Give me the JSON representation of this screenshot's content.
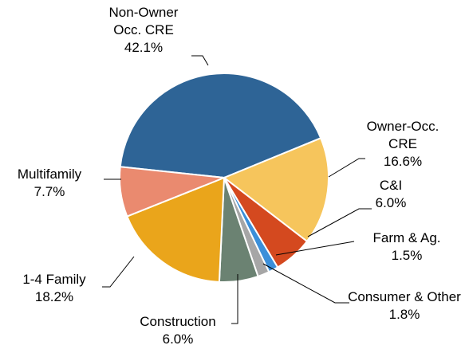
{
  "chart_data": {
    "type": "pie",
    "categories": [
      "Non-Owner Occ. CRE",
      "Owner-Occ. CRE",
      "C&I",
      "Farm & Ag.",
      "Consumer & Other",
      "Construction",
      "1-4 Family",
      "Multifamily"
    ],
    "values": [
      42.1,
      16.6,
      6.0,
      1.5,
      1.8,
      6.0,
      18.2,
      7.7
    ],
    "value_labels": [
      "42.1%",
      "16.6%",
      "6.0%",
      "1.5%",
      "1.8%",
      "6.0%",
      "18.2%",
      "7.7%"
    ],
    "colors": [
      "#2e6496",
      "#f6c55c",
      "#d4491f",
      "#3b8fd9",
      "#a6a6a6",
      "#6b8272",
      "#eaa51b",
      "#ea8a6f"
    ]
  }
}
